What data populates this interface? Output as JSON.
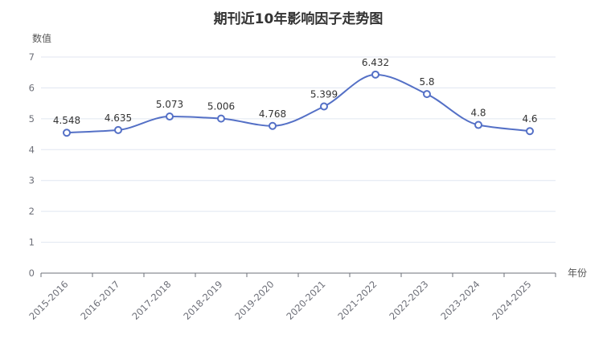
{
  "chart_data": {
    "type": "line",
    "title": "期刊近10年影响因子走势图",
    "xlabel": "年份",
    "ylabel": "数值",
    "categories": [
      "2015-2016",
      "2016-2017",
      "2017-2018",
      "2018-2019",
      "2019-2020",
      "2020-2021",
      "2021-2022",
      "2022-2023",
      "2023-2024",
      "2024-2025"
    ],
    "values": [
      4.548,
      4.635,
      5.073,
      5.006,
      4.768,
      5.399,
      6.432,
      5.8,
      4.8,
      4.6
    ],
    "value_labels": [
      "4.548",
      "4.635",
      "5.073",
      "5.006",
      "4.768",
      "5.399",
      "6.432",
      "5.8",
      "4.8",
      "4.6"
    ],
    "ylim": [
      0,
      7
    ],
    "yticks": [
      "0",
      "1",
      "2",
      "3",
      "4",
      "5",
      "6",
      "7"
    ],
    "grid": true,
    "smooth": true,
    "colors": {
      "line": "#5470c6",
      "marker_fill": "#ffffff",
      "grid": "#e0e6f1",
      "axis": "#6e7079"
    }
  }
}
